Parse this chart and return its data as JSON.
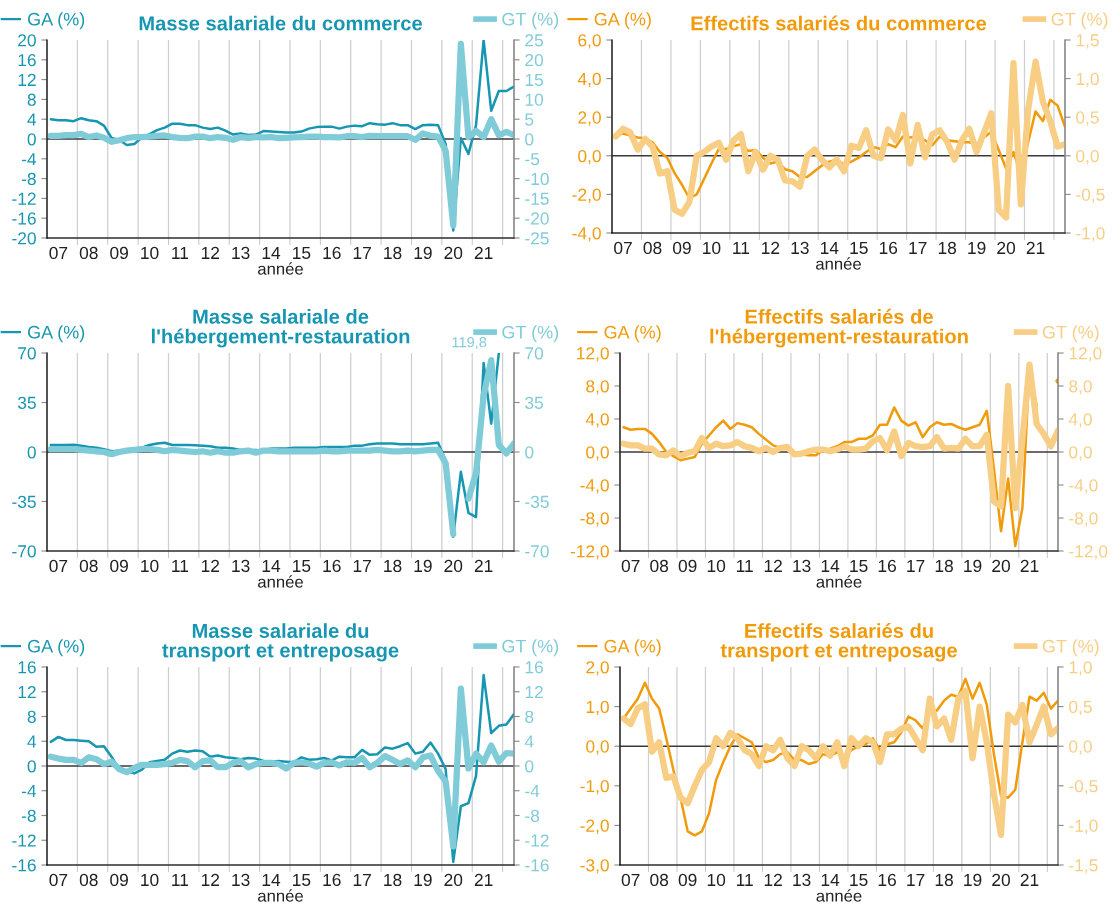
{
  "chart_data": [
    {
      "type": "line",
      "title": "Masse salariale du commerce",
      "xlabel": "année",
      "legend": "top",
      "grid": "x",
      "categories": [
        null,
        "07",
        null,
        null,
        null,
        "08",
        null,
        null,
        null,
        "09",
        null,
        null,
        null,
        "10",
        null,
        null,
        null,
        "11",
        null,
        null,
        null,
        "12",
        null,
        null,
        null,
        "13",
        null,
        null,
        null,
        "14",
        null,
        null,
        null,
        "15",
        null,
        null,
        null,
        "16",
        null,
        null,
        null,
        "17",
        null,
        null,
        null,
        "18",
        null,
        null,
        null,
        "19",
        null,
        null,
        null,
        "20",
        null,
        null,
        null,
        "21",
        null,
        null,
        null,
        null
      ],
      "ylim": [
        -20,
        20
      ],
      "yticks": [
        -20,
        -16,
        -12,
        -8,
        -4,
        0,
        4,
        8,
        12,
        16,
        20
      ],
      "y2lim": [
        -25,
        25
      ],
      "y2ticks": [
        -25,
        -20,
        -15,
        -10,
        -5,
        0,
        5,
        10,
        15,
        20,
        25
      ],
      "ref_lines": [
        {
          "axis": "y",
          "value": 0,
          "color": "#3a3a3a"
        }
      ],
      "series": [
        {
          "name": "GA (%)",
          "color": "#1796b1",
          "values": [
            4.0,
            3.8,
            3.8,
            3.6,
            4.2,
            3.8,
            3.6,
            2.7,
            0.2,
            -0.2,
            -1.2,
            -1.0,
            0.3,
            1.0,
            1.8,
            2.3,
            3.1,
            3.1,
            2.8,
            2.8,
            2.3,
            2.0,
            2.3,
            1.7,
            0.9,
            1.1,
            0.8,
            0.9,
            1.6,
            1.5,
            1.4,
            1.3,
            1.3,
            1.5,
            2.1,
            2.4,
            2.5,
            2.5,
            2.1,
            2.5,
            2.7,
            2.6,
            3.2,
            3.0,
            2.9,
            3.2,
            2.8,
            2.8,
            2.0,
            2.8,
            2.9,
            2.8,
            -1.0,
            -18.5,
            0.2,
            -3.0,
            2.8,
            20,
            5.7,
            9.7,
            9.7,
            10.6
          ]
        },
        {
          "name": "GT (%)",
          "color": "#7fcbd8",
          "axis": "y2",
          "values": [
            0.8,
            0.8,
            1.0,
            1.0,
            1.3,
            0.5,
            0.9,
            0.3,
            -0.7,
            -0.3,
            0.2,
            0.5,
            0.5,
            0.6,
            0.8,
            0.9,
            0.5,
            0.3,
            0.2,
            0.6,
            0.6,
            0.2,
            0.5,
            0.3,
            -0.2,
            0.5,
            0.3,
            0.5,
            0.4,
            0.5,
            0.2,
            0.3,
            0.4,
            0.5,
            0.6,
            0.6,
            0.5,
            0.5,
            0.4,
            0.7,
            0.7,
            0.5,
            0.8,
            0.7,
            0.7,
            0.7,
            0.7,
            0.7,
            -0.2,
            1.4,
            0.8,
            0.6,
            -3.0,
            -21.8,
            24,
            0.5,
            2.0,
            0.5,
            5.0,
            1.0,
            1.8,
            1.0
          ]
        }
      ]
    },
    {
      "type": "line",
      "title": "Effectifs salariés du commerce",
      "xlabel": "année",
      "legend": "top",
      "grid": "x",
      "categories": [
        null,
        "07",
        null,
        null,
        null,
        "08",
        null,
        null,
        null,
        "09",
        null,
        null,
        null,
        "10",
        null,
        null,
        null,
        "11",
        null,
        null,
        null,
        "12",
        null,
        null,
        null,
        "13",
        null,
        null,
        null,
        "14",
        null,
        null,
        null,
        "15",
        null,
        null,
        null,
        "16",
        null,
        null,
        null,
        "17",
        null,
        null,
        null,
        "18",
        null,
        null,
        null,
        "19",
        null,
        null,
        null,
        "20",
        null,
        null,
        null,
        "21",
        null,
        null,
        null,
        null
      ],
      "ylim": [
        -4,
        6
      ],
      "yticks": [
        {
          "value": -4,
          "label": "-4,0"
        },
        {
          "value": -2,
          "label": "-2,0"
        },
        {
          "value": 0,
          "label": "0,0"
        },
        {
          "value": 2,
          "label": "2,0"
        },
        {
          "value": 4,
          "label": "4,0"
        },
        {
          "value": 6,
          "label": "6,0"
        }
      ],
      "y2lim": [
        -1,
        1.5
      ],
      "y2ticks": [
        {
          "value": -1,
          "label": "-1,0"
        },
        {
          "value": -0.5,
          "label": "-0,5"
        },
        {
          "value": 0,
          "label": "0,0"
        },
        {
          "value": 0.5,
          "label": "0,5"
        },
        {
          "value": 1,
          "label": "1,0"
        },
        {
          "value": 1.5,
          "label": "1,5"
        }
      ],
      "ref_lines": [
        {
          "axis": "y",
          "value": 0,
          "color": "#3a3a3a"
        }
      ],
      "series": [
        {
          "name": "GA (%)",
          "color": "#f19a0a",
          "values": [
            1.05,
            1.15,
            1.05,
            0.95,
            0.9,
            0.7,
            0.2,
            -0.1,
            -0.9,
            -1.5,
            -2.2,
            -2.0,
            -1.2,
            -0.4,
            0.35,
            0.35,
            0.5,
            0.6,
            0.25,
            0.3,
            -0.1,
            -0.4,
            -0.3,
            -0.7,
            -0.8,
            -1.1,
            -1.1,
            -0.8,
            -0.5,
            -0.3,
            -0.2,
            -0.45,
            -0.3,
            -0.1,
            0.2,
            0.45,
            0.35,
            0.6,
            0.45,
            1.0,
            0.95,
            1.0,
            0.8,
            0.55,
            1.0,
            0.8,
            0.75,
            0.7,
            0.7,
            0.6,
            0.95,
            1.25,
            0.3,
            -0.65,
            0.2,
            -0.95,
            0.7,
            2.3,
            1.8,
            2.9,
            2.6,
            1.5
          ]
        },
        {
          "name": "GT (%)",
          "color": "#f8cd84",
          "axis": "y2",
          "values": [
            0.25,
            0.35,
            0.3,
            0.08,
            0.22,
            0.12,
            -0.23,
            -0.2,
            -0.7,
            -0.75,
            -0.6,
            0.0,
            0.05,
            0.12,
            0.17,
            -0.05,
            0.2,
            0.28,
            -0.2,
            0.05,
            -0.18,
            0.0,
            -0.05,
            -0.32,
            -0.33,
            -0.4,
            0.0,
            0.08,
            -0.05,
            -0.15,
            -0.05,
            -0.2,
            0.13,
            0.1,
            0.33,
            0.0,
            -0.03,
            0.34,
            0.2,
            0.53,
            -0.1,
            0.4,
            -0.02,
            0.28,
            0.33,
            0.18,
            -0.05,
            0.2,
            0.35,
            0.05,
            0.3,
            0.55,
            -0.7,
            -0.8,
            1.2,
            -0.63,
            0.6,
            1.22,
            0.7,
            0.45,
            0.12,
            0.15
          ]
        }
      ]
    },
    {
      "type": "line",
      "title": "Masse salariale de\nl'hébergement-restauration",
      "xlabel": "année",
      "legend": "top",
      "grid": "x",
      "categories": [
        null,
        "07",
        null,
        null,
        null,
        "08",
        null,
        null,
        null,
        "09",
        null,
        null,
        null,
        "10",
        null,
        null,
        null,
        "11",
        null,
        null,
        null,
        "12",
        null,
        null,
        null,
        "13",
        null,
        null,
        null,
        "14",
        null,
        null,
        null,
        "15",
        null,
        null,
        null,
        "16",
        null,
        null,
        null,
        "17",
        null,
        null,
        null,
        "18",
        null,
        null,
        null,
        "19",
        null,
        null,
        null,
        "20",
        null,
        null,
        null,
        "21",
        null,
        null,
        null,
        null
      ],
      "ylim": [
        -70,
        70
      ],
      "yticks": [
        -70,
        -35,
        0,
        35,
        70
      ],
      "y2lim": [
        -70,
        70
      ],
      "y2ticks": [
        -70,
        -35,
        0,
        35,
        70
      ],
      "ref_lines": [
        {
          "axis": "y",
          "value": 0,
          "color": "#3a3a3a"
        }
      ],
      "series": [
        {
          "name": "GA (%)",
          "color": "#1796b1",
          "values": [
            5,
            5,
            5,
            5.2,
            4.5,
            3.5,
            3,
            2,
            0.5,
            0.8,
            1.5,
            2.5,
            3,
            5,
            6,
            6.5,
            5,
            5,
            5,
            4.8,
            4.5,
            4,
            3,
            3,
            2.5,
            1.5,
            1.5,
            1.5,
            0.8,
            2.5,
            2.5,
            2.5,
            3,
            3,
            3,
            3,
            3.5,
            3.5,
            3.5,
            3.5,
            4.5,
            4.5,
            5.5,
            6,
            6,
            6,
            5.5,
            5.5,
            5.5,
            5.5,
            6,
            6.5,
            -6,
            -60,
            -14,
            -43,
            -46,
            63,
            20,
            70,
            null,
            null
          ]
        },
        {
          "name": "GT (%)",
          "color": "#7fcbd8",
          "axis": "y2",
          "values": [
            2,
            2,
            2,
            2,
            1.5,
            1,
            0.5,
            0,
            -1.5,
            0,
            1,
            1.5,
            2,
            2,
            1.5,
            0.5,
            1.5,
            1,
            0.5,
            0,
            0.5,
            -0.5,
            0.5,
            -0.5,
            -0.5,
            0.5,
            1,
            -0.5,
            1,
            1,
            0.5,
            0.5,
            0.5,
            0.5,
            0.5,
            0.5,
            1,
            0.5,
            0.5,
            1,
            1,
            1,
            1,
            1.5,
            1,
            0.5,
            0.5,
            1,
            0.5,
            1,
            1.5,
            1.5,
            -8,
            -58,
            null,
            -33,
            -15,
            40,
            65,
            5,
            -1,
            6
          ],
          "value_labels": [
            null,
            null,
            null,
            null,
            null,
            null,
            null,
            null,
            null,
            null,
            null,
            null,
            null,
            null,
            null,
            null,
            null,
            null,
            null,
            null,
            null,
            null,
            null,
            null,
            null,
            null,
            null,
            null,
            null,
            null,
            null,
            null,
            null,
            null,
            null,
            null,
            null,
            null,
            null,
            null,
            null,
            null,
            null,
            null,
            null,
            null,
            null,
            null,
            null,
            null,
            null,
            null,
            null,
            null,
            "119,8",
            null,
            null,
            null,
            null,
            null,
            null,
            null
          ]
        }
      ]
    },
    {
      "type": "line",
      "title": "Effectifs salariés de\nl'hébergement-restauration",
      "xlabel": "année",
      "legend": "top",
      "grid": "x",
      "categories": [
        null,
        "07",
        null,
        null,
        null,
        "08",
        null,
        null,
        null,
        "09",
        null,
        null,
        null,
        "10",
        null,
        null,
        null,
        "11",
        null,
        null,
        null,
        "12",
        null,
        null,
        null,
        "13",
        null,
        null,
        null,
        "14",
        null,
        null,
        null,
        "15",
        null,
        null,
        null,
        "16",
        null,
        null,
        null,
        "17",
        null,
        null,
        null,
        "18",
        null,
        null,
        null,
        "19",
        null,
        null,
        null,
        "20",
        null,
        null,
        null,
        "21",
        null,
        null,
        null,
        null
      ],
      "ylim": [
        -12,
        12
      ],
      "yticks": [
        {
          "value": -12,
          "label": "-12,0"
        },
        {
          "value": -8,
          "label": "-8,0"
        },
        {
          "value": -4,
          "label": "-4,0"
        },
        {
          "value": 0,
          "label": "0,0"
        },
        {
          "value": 4,
          "label": "4,0"
        },
        {
          "value": 8,
          "label": "8,0"
        },
        {
          "value": 12,
          "label": "12,0"
        }
      ],
      "y2lim": [
        -12,
        12
      ],
      "y2ticks": [
        {
          "value": -12,
          "label": "-12,0"
        },
        {
          "value": -8,
          "label": "-8,0"
        },
        {
          "value": -4,
          "label": "-4,0"
        },
        {
          "value": 0,
          "label": "0,0"
        },
        {
          "value": 4,
          "label": "4,0"
        },
        {
          "value": 8,
          "label": "8,0"
        },
        {
          "value": 12,
          "label": "12,0"
        }
      ],
      "ref_lines": [
        {
          "axis": "y",
          "value": 0,
          "color": "#3a3a3a"
        }
      ],
      "series": [
        {
          "name": "GA (%)",
          "color": "#f19a0a",
          "values": [
            3.0,
            2.7,
            2.8,
            2.8,
            2.2,
            1.2,
            0.0,
            -0.5,
            -1.0,
            -0.8,
            -0.6,
            1.0,
            2.0,
            3.0,
            3.8,
            2.8,
            3.5,
            3.3,
            3.0,
            2.2,
            1.5,
            0.8,
            0.5,
            0.8,
            -0.1,
            -0.3,
            -0.4,
            -0.4,
            0.2,
            0.4,
            0.7,
            1.2,
            1.2,
            1.6,
            1.6,
            2.0,
            3.3,
            3.3,
            5.4,
            3.8,
            3.2,
            3.6,
            1.8,
            3.0,
            3.6,
            3.3,
            3.4,
            3.0,
            2.7,
            3.0,
            3.3,
            5.0,
            -2.0,
            -9.6,
            -3.2,
            -11.4,
            -6.8,
            10.4,
            5.6,
            null,
            null,
            8.6
          ]
        },
        {
          "name": "GT (%)",
          "color": "#f8cd84",
          "axis": "y2",
          "values": [
            1.0,
            0.8,
            0.8,
            0.4,
            0.4,
            -0.3,
            -0.4,
            0.2,
            -0.5,
            -0.1,
            0.1,
            1.7,
            0.5,
            1.0,
            0.7,
            0.8,
            1.2,
            0.7,
            0.5,
            0.1,
            0.5,
            0.0,
            0.5,
            0.6,
            -0.3,
            -0.2,
            0.1,
            0.3,
            0.3,
            0.1,
            0.3,
            0.7,
            0.3,
            0.3,
            0.4,
            1.3,
            1.7,
            0.2,
            2.5,
            -0.5,
            1.1,
            0.7,
            0.6,
            0.7,
            1.8,
            0.4,
            0.5,
            0.4,
            1.6,
            0.7,
            0.7,
            2.1,
            -6.0,
            -6.6,
            8.0,
            -6.8,
            1.5,
            10.6,
            3.4,
            2.2,
            0.7,
            2.6
          ]
        }
      ]
    },
    {
      "type": "line",
      "title": "Masse salariale du\ntransport et entreposage",
      "xlabel": "année",
      "legend": "top",
      "grid": "x",
      "categories": [
        null,
        "07",
        null,
        null,
        null,
        "08",
        null,
        null,
        null,
        "09",
        null,
        null,
        null,
        "10",
        null,
        null,
        null,
        "11",
        null,
        null,
        null,
        "12",
        null,
        null,
        null,
        "13",
        null,
        null,
        null,
        "14",
        null,
        null,
        null,
        "15",
        null,
        null,
        null,
        "16",
        null,
        null,
        null,
        "17",
        null,
        null,
        null,
        "18",
        null,
        null,
        null,
        "19",
        null,
        null,
        null,
        "20",
        null,
        null,
        null,
        "21",
        null,
        null,
        null,
        null
      ],
      "ylim": [
        -16,
        16
      ],
      "yticks": [
        -16,
        -12,
        -8,
        -4,
        0,
        4,
        8,
        12,
        16
      ],
      "y2lim": [
        -16,
        16
      ],
      "y2ticks": [
        -16,
        -12,
        -8,
        -4,
        0,
        4,
        8,
        12,
        16
      ],
      "ref_lines": [
        {
          "axis": "y",
          "value": 0,
          "color": "#3a3a3a"
        }
      ],
      "series": [
        {
          "name": "GA (%)",
          "color": "#1796b1",
          "values": [
            3.9,
            4.7,
            4.2,
            4.2,
            4.1,
            4.0,
            3.1,
            3.2,
            1.5,
            -0.5,
            -0.8,
            -1.2,
            -0.6,
            0.6,
            0.8,
            1.0,
            2.0,
            2.5,
            2.3,
            2.5,
            2.4,
            1.5,
            1.7,
            1.4,
            1.3,
            1.1,
            1.3,
            1.2,
            0.8,
            0.7,
            0.8,
            0.7,
            0.6,
            1.4,
            1.0,
            1.1,
            1.3,
            0.9,
            1.5,
            1.4,
            1.4,
            2.6,
            1.8,
            1.9,
            3.0,
            2.8,
            3.2,
            3.7,
            2.0,
            2.3,
            3.8,
            2.0,
            -0.5,
            -15.5,
            -6.5,
            -6.0,
            -1.6,
            14.7,
            5.3,
            6.5,
            6.7,
            8.4
          ]
        },
        {
          "name": "GT (%)",
          "color": "#7fcbd8",
          "axis": "y2",
          "values": [
            1.5,
            1.2,
            1.0,
            1.0,
            0.5,
            1.4,
            1.1,
            0.3,
            0.7,
            -0.5,
            -1.0,
            -0.3,
            0.2,
            0.2,
            0.2,
            0.3,
            0.5,
            1.0,
            0.8,
            -0.2,
            0.8,
            0.9,
            -0.2,
            -0.2,
            0.5,
            0.8,
            -0.2,
            0.3,
            0.5,
            0.5,
            0.3,
            -0.4,
            0.5,
            0.6,
            0.4,
            -0.1,
            0.5,
            0.6,
            0.1,
            0.6,
            0.5,
            1.3,
            -0.2,
            0.5,
            1.6,
            1.0,
            0.3,
            0.9,
            -0.2,
            1.4,
            1.7,
            -0.8,
            -2.5,
            -13.0,
            12.5,
            -0.4,
            2.0,
            0.6,
            3.3,
            0.7,
            2.1,
            2.0
          ]
        }
      ]
    },
    {
      "type": "line",
      "title": "Effectifs salariés du\ntransport et entreposage",
      "xlabel": "année",
      "legend": "top",
      "grid": "x",
      "categories": [
        null,
        "07",
        null,
        null,
        null,
        "08",
        null,
        null,
        null,
        "09",
        null,
        null,
        null,
        "10",
        null,
        null,
        null,
        "11",
        null,
        null,
        null,
        "12",
        null,
        null,
        null,
        "13",
        null,
        null,
        null,
        "14",
        null,
        null,
        null,
        "15",
        null,
        null,
        null,
        "16",
        null,
        null,
        null,
        "17",
        null,
        null,
        null,
        "18",
        null,
        null,
        null,
        "19",
        null,
        null,
        null,
        "20",
        null,
        null,
        null,
        "21",
        null,
        null,
        null,
        null
      ],
      "ylim": [
        -3,
        2
      ],
      "yticks": [
        {
          "value": -3,
          "label": "-3,0"
        },
        {
          "value": -2,
          "label": "-2,0"
        },
        {
          "value": -1,
          "label": "-1,0"
        },
        {
          "value": 0,
          "label": "0,0"
        },
        {
          "value": 1,
          "label": "1,0"
        },
        {
          "value": 2,
          "label": "2,0"
        }
      ],
      "y2lim": [
        -1.5,
        1
      ],
      "y2ticks": [
        {
          "value": -1.5,
          "label": "-1,5"
        },
        {
          "value": -1,
          "label": "-1,0"
        },
        {
          "value": -0.5,
          "label": "-0,5"
        },
        {
          "value": 0,
          "label": "0,0"
        },
        {
          "value": 0.5,
          "label": "0,5"
        },
        {
          "value": 1,
          "label": "1,0"
        }
      ],
      "ref_lines": [
        {
          "axis": "y",
          "value": 0,
          "color": "#3a3a3a"
        }
      ],
      "series": [
        {
          "name": "GA (%)",
          "color": "#f19a0a",
          "values": [
            0.7,
            0.95,
            1.2,
            1.6,
            1.2,
            0.95,
            0.2,
            -0.6,
            -1.3,
            -2.15,
            -2.25,
            -2.15,
            -1.7,
            -0.85,
            -0.4,
            0.0,
            0.3,
            0.2,
            0.1,
            -0.3,
            -0.4,
            -0.35,
            -0.2,
            -0.15,
            -0.35,
            -0.35,
            -0.45,
            -0.4,
            -0.2,
            -0.25,
            -0.15,
            -0.25,
            -0.1,
            0.0,
            0.05,
            0.2,
            -0.1,
            0.05,
            0.1,
            0.35,
            0.75,
            0.65,
            0.45,
            0.85,
            0.9,
            1.15,
            1.3,
            1.25,
            1.7,
            1.2,
            1.6,
            1.05,
            -0.2,
            -1.25,
            -1.3,
            -1.1,
            0.1,
            1.25,
            1.15,
            1.35,
            0.95,
            1.15
          ]
        },
        {
          "name": "GT (%)",
          "color": "#f8cd84",
          "axis": "y2",
          "values": [
            0.35,
            0.28,
            0.48,
            0.53,
            -0.07,
            0.05,
            -0.4,
            -0.38,
            -0.65,
            -0.72,
            -0.5,
            -0.3,
            -0.2,
            0.1,
            0.0,
            0.17,
            0.1,
            -0.05,
            -0.1,
            -0.25,
            0.0,
            -0.05,
            0.08,
            -0.15,
            -0.25,
            0.0,
            -0.05,
            -0.15,
            0.0,
            -0.12,
            0.05,
            -0.25,
            0.1,
            0.0,
            0.1,
            0.05,
            -0.2,
            0.15,
            0.15,
            0.22,
            0.25,
            0.1,
            -0.05,
            0.6,
            0.25,
            0.35,
            0.08,
            0.6,
            0.7,
            -0.15,
            0.5,
            0.05,
            -0.6,
            -1.12,
            0.4,
            0.3,
            0.52,
            0.05,
            0.27,
            0.5,
            0.15,
            0.23
          ]
        }
      ]
    }
  ]
}
